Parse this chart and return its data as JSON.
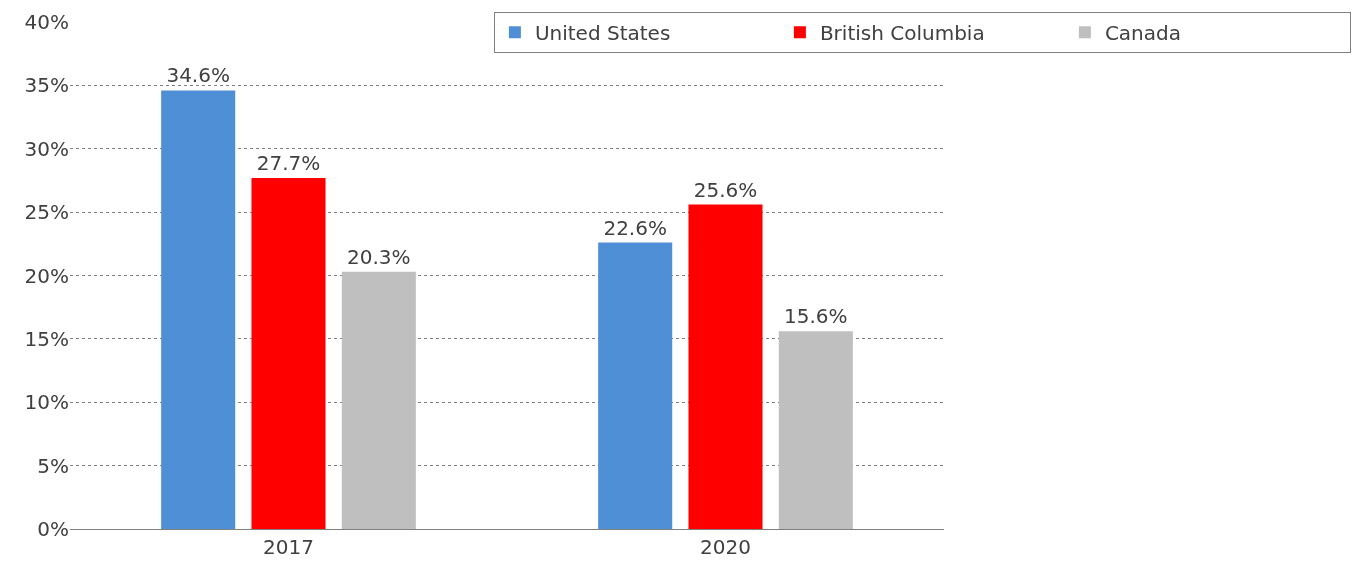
{
  "chart_data": {
    "type": "bar",
    "categories": [
      "2017",
      "2020"
    ],
    "series": [
      {
        "name": "United States",
        "color": "#4f8fd6",
        "values": [
          34.6,
          22.6
        ],
        "value_labels": [
          "34.6%",
          "22.6%"
        ]
      },
      {
        "name": "British Columbia",
        "color": "#ff0000",
        "values": [
          27.7,
          25.6
        ],
        "value_labels": [
          "27.7%",
          "25.6%"
        ]
      },
      {
        "name": "Canada",
        "color": "#bfbfbf",
        "values": [
          20.3,
          15.6
        ],
        "value_labels": [
          "20.3%",
          "15.6%"
        ]
      }
    ],
    "ylim": [
      0,
      40
    ],
    "yticks": [
      {
        "value": 0,
        "label": "0%"
      },
      {
        "value": 5,
        "label": "5%"
      },
      {
        "value": 10,
        "label": "10%"
      },
      {
        "value": 15,
        "label": "15%"
      },
      {
        "value": 20,
        "label": "20%"
      },
      {
        "value": 25,
        "label": "25%"
      },
      {
        "value": 30,
        "label": "30%"
      },
      {
        "value": 35,
        "label": "35%"
      },
      {
        "value": 40,
        "label": "40%"
      }
    ],
    "grid": "y",
    "legend": "top right"
  }
}
